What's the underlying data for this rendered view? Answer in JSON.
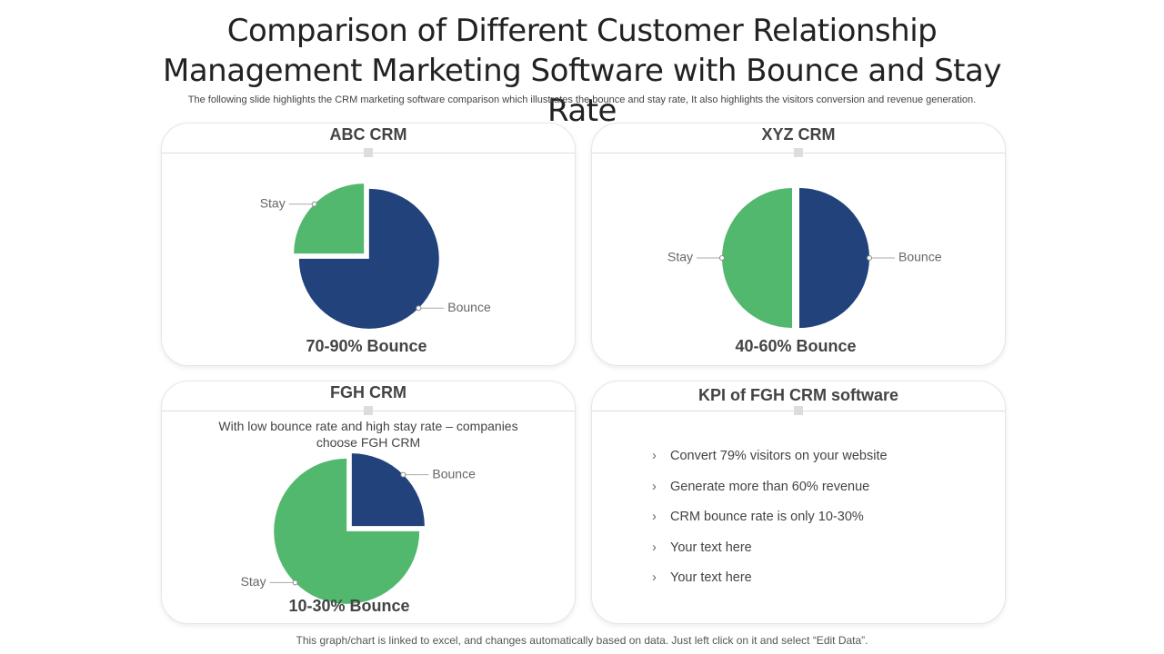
{
  "title": "Comparison of Different Customer Relationship Management Marketing Software with Bounce and Stay Rate",
  "subtitle": "The following slide highlights the CRM marketing software comparison which illustrates the bounce and stay rate, It also highlights the visitors conversion and revenue generation.",
  "chart_data": [
    {
      "type": "pie",
      "title": "ABC CRM",
      "categories": [
        "Bounce",
        "Stay"
      ],
      "values": [
        75,
        25
      ],
      "colors": [
        "#21427a",
        "#52b86d"
      ],
      "caption": "70-90% Bounce"
    },
    {
      "type": "pie",
      "title": "XYZ CRM",
      "categories": [
        "Bounce",
        "Stay"
      ],
      "values": [
        50,
        50
      ],
      "colors": [
        "#21427a",
        "#52b86d"
      ],
      "caption": "40-60% Bounce"
    },
    {
      "type": "pie",
      "title": "FGH CRM",
      "description": "With low bounce rate and high stay rate – companies choose FGH CRM",
      "categories": [
        "Bounce",
        "Stay"
      ],
      "values": [
        25,
        75
      ],
      "colors": [
        "#21427a",
        "#52b86d"
      ],
      "caption": "10-30% Bounce"
    }
  ],
  "kpi": {
    "title": "KPI of FGH CRM software",
    "items": [
      "Convert 79% visitors on your website",
      "Generate more than 60% revenue",
      "CRM bounce rate is only 10-30%",
      "Your text here",
      "Your text here"
    ]
  },
  "footer": "This graph/chart is linked to excel, and changes automatically based on data. Just left click on it and select “Edit Data”."
}
